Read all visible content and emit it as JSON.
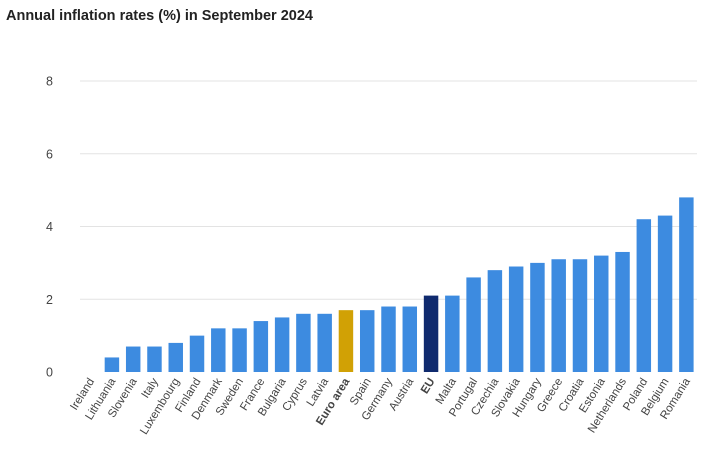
{
  "chart_data": {
    "type": "bar",
    "title": "Annual inflation rates (%) in September 2024",
    "xlabel": "",
    "ylabel": "",
    "ylim": [
      0,
      8
    ],
    "yticks": [
      0,
      2,
      4,
      6,
      8
    ],
    "grid": true,
    "categories": [
      "Ireland",
      "Lithuania",
      "Slovenia",
      "Italy",
      "Luxembourg",
      "Finland",
      "Denmark",
      "Sweden",
      "France",
      "Bulgaria",
      "Cyprus",
      "Latvia",
      "Euro area",
      "Spain",
      "Germany",
      "Austria",
      "EU",
      "Malta",
      "Portugal",
      "Czechia",
      "Slovakia",
      "Hungary",
      "Greece",
      "Croatia",
      "Estonia",
      "Netherlands",
      "Poland",
      "Belgium",
      "Romania"
    ],
    "values": [
      0.0,
      0.4,
      0.7,
      0.7,
      0.8,
      1.0,
      1.2,
      1.2,
      1.4,
      1.5,
      1.6,
      1.6,
      1.7,
      1.7,
      1.8,
      1.8,
      2.1,
      2.1,
      2.6,
      2.8,
      2.9,
      3.0,
      3.1,
      3.1,
      3.2,
      3.3,
      4.2,
      4.3,
      4.8
    ],
    "colors": {
      "default": "#3d8be0",
      "Euro area": "#d1a105",
      "EU": "#0f2a6e"
    },
    "bold_labels": [
      "Euro area",
      "EU"
    ]
  }
}
